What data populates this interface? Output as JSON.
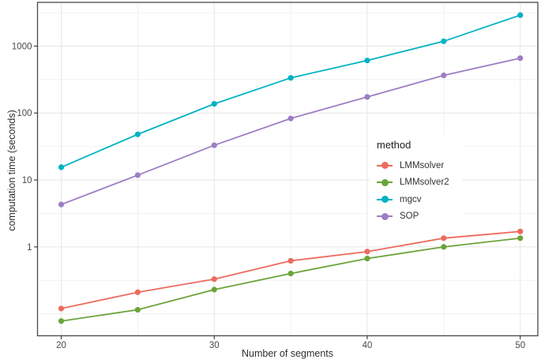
{
  "figure": {
    "background": "#ffffff"
  },
  "chart_data": {
    "type": "line",
    "title": "",
    "xlabel": "Number of segments",
    "ylabel": "computation time (seconds)",
    "x": [
      20,
      25,
      30,
      35,
      40,
      45,
      50
    ],
    "series": [
      {
        "name": "LMMsolver",
        "color": "#ee6a5e",
        "values": [
          0.12,
          0.21,
          0.33,
          0.62,
          0.85,
          1.35,
          1.7
        ]
      },
      {
        "name": "LMMsolver2",
        "color": "#6ba43a",
        "values": [
          0.078,
          0.115,
          0.23,
          0.4,
          0.67,
          1.0,
          1.35
        ]
      },
      {
        "name": "mgcv",
        "color": "#00b2c2",
        "values": [
          15.5,
          48,
          137,
          335,
          610,
          1180,
          2900
        ]
      },
      {
        "name": "SOP",
        "color": "#9d7ec4",
        "values": [
          4.3,
          11.8,
          33,
          83,
          174,
          365,
          660
        ]
      }
    ],
    "x_ticks": [
      {
        "value": 20,
        "label": "20"
      },
      {
        "value": 30,
        "label": "30"
      },
      {
        "value": 40,
        "label": "40"
      },
      {
        "value": 50,
        "label": "50"
      }
    ],
    "x_minor": [
      25,
      35,
      45
    ],
    "y_ticks": [
      {
        "value": 1,
        "label": "1"
      },
      {
        "value": 10,
        "label": "10"
      },
      {
        "value": 100,
        "label": "100"
      },
      {
        "value": 1000,
        "label": "1000"
      }
    ],
    "y_minor": [
      3162.3,
      316.23,
      31.623,
      3.1623,
      0.31623,
      0.1
    ],
    "x_range": [
      18.45,
      51.15
    ],
    "y_range": [
      0.047,
      4500
    ],
    "y_scale": "log10",
    "grid": true,
    "legend": {
      "title": "method",
      "position": "inside-right"
    },
    "colors": {
      "grid_major": "#e6e6e6",
      "grid_minor": "#f1f1f1",
      "panel_border": "#474747",
      "tick": "#333333",
      "tick_text": "#4a4a4a"
    }
  }
}
